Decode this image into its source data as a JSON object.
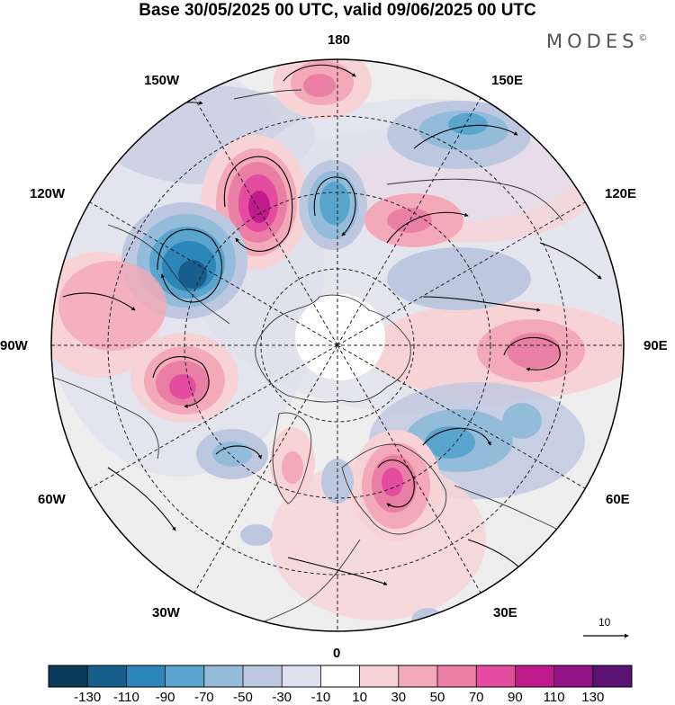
{
  "title": "Base 30/05/2025 00 UTC, valid 09/06/2025 00 UTC",
  "brand": {
    "name": "MODES",
    "mark": "©"
  },
  "map": {
    "projection": "north polar stereographic",
    "longitude_labels": {
      "top": "180",
      "bottom": "0",
      "left": "90W",
      "right": "90E",
      "upper_left": "150W",
      "upper_left2": "120W",
      "lower_left": "60W",
      "lower_left2": "30W",
      "upper_right": "150E",
      "upper_right2": "120E",
      "lower_right": "60E",
      "lower_right2": "30E"
    },
    "reference_vector": "10",
    "anomaly_centers": [
      {
        "sign": "positive",
        "region": "North Pacific near dateline",
        "approx_value": 70
      },
      {
        "sign": "positive",
        "region": "Bering Sea / Alaska west",
        "approx_value": 110
      },
      {
        "sign": "negative",
        "region": "Alaska / Beaufort",
        "approx_value": -70
      },
      {
        "sign": "negative",
        "region": "Gulf of Alaska / NW Canada",
        "approx_value": -110
      },
      {
        "sign": "negative",
        "region": "East Siberia",
        "approx_value": -70
      },
      {
        "sign": "positive",
        "region": "Hudson Bay / Canada",
        "approx_value": 90
      },
      {
        "sign": "positive",
        "region": "Central Siberia",
        "approx_value": 70
      },
      {
        "sign": "positive",
        "region": "Scandinavia / Baltic",
        "approx_value": 90
      },
      {
        "sign": "negative",
        "region": "Western Siberia",
        "approx_value": -70
      },
      {
        "sign": "negative",
        "region": "North Atlantic",
        "approx_value": -50
      }
    ]
  },
  "colorbar": {
    "ticks": [
      "-130",
      "-110",
      "-90",
      "-70",
      "-50",
      "-30",
      "-10",
      "10",
      "30",
      "50",
      "70",
      "90",
      "110",
      "130"
    ],
    "colors": [
      "#0d3b5c",
      "#175e8d",
      "#2d86b9",
      "#5aa5cd",
      "#93bcdb",
      "#bec7e0",
      "#dfe0ee",
      "#ffffff",
      "#f8d3d6",
      "#f3a9b7",
      "#ea7fa6",
      "#e44ca0",
      "#c11b8b",
      "#8f1387",
      "#5a1275"
    ]
  }
}
